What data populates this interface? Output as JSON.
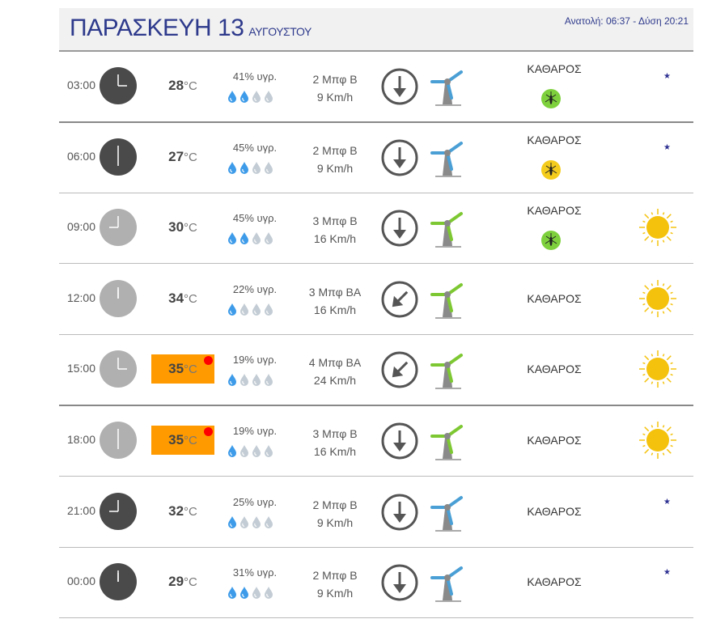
{
  "header": {
    "day": "ΠΑΡΑΣΚΕΥΗ 13",
    "month": "ΑΥΓΟΥΣΤΟΥ",
    "sun": "Ανατολή: 06:37  - Δύση 20:21"
  },
  "colors": {
    "night_clock": "#4a4a4a",
    "day_clock": "#b0b0b0",
    "hot": "#ff9a00",
    "turbine_blue": "#4a9fd5",
    "turbine_green": "#7dc832",
    "moon": "#2e3192",
    "sun": "#f4c20d"
  },
  "rows": [
    {
      "time": "03:00",
      "clock": "night",
      "temp": "28",
      "unit": "°C",
      "hot": false,
      "humidity": "41% υγρ.",
      "drops": 2,
      "beaufort": "2 Μπφ Β",
      "speed": "9 Km/h",
      "arrow": "down",
      "turbine": "blue",
      "condition": "ΚΑΘΑΡΟΣ",
      "mosquito": "green",
      "icon": "moon"
    },
    {
      "time": "06:00",
      "clock": "night",
      "temp": "27",
      "unit": "°C",
      "hot": false,
      "humidity": "45% υγρ.",
      "drops": 2,
      "beaufort": "2 Μπφ Β",
      "speed": "9 Km/h",
      "arrow": "down",
      "turbine": "blue",
      "condition": "ΚΑΘΑΡΟΣ",
      "mosquito": "yellow",
      "icon": "moon"
    },
    {
      "time": "09:00",
      "clock": "day",
      "temp": "30",
      "unit": "°C",
      "hot": false,
      "humidity": "45% υγρ.",
      "drops": 2,
      "beaufort": "3 Μπφ Β",
      "speed": "16 Km/h",
      "arrow": "down",
      "turbine": "green",
      "condition": "ΚΑΘΑΡΟΣ",
      "mosquito": "green",
      "icon": "sun"
    },
    {
      "time": "12:00",
      "clock": "day",
      "temp": "34",
      "unit": "°C",
      "hot": false,
      "humidity": "22% υγρ.",
      "drops": 1,
      "beaufort": "3 Μπφ ΒΑ",
      "speed": "16 Km/h",
      "arrow": "down-left",
      "turbine": "green",
      "condition": "ΚΑΘΑΡΟΣ",
      "mosquito": null,
      "icon": "sun"
    },
    {
      "time": "15:00",
      "clock": "day",
      "temp": "35",
      "unit": "°C",
      "hot": true,
      "humidity": "19% υγρ.",
      "drops": 1,
      "beaufort": "4 Μπφ ΒΑ",
      "speed": "24 Km/h",
      "arrow": "down-left",
      "turbine": "green",
      "condition": "ΚΑΘΑΡΟΣ",
      "mosquito": null,
      "icon": "sun"
    },
    {
      "time": "18:00",
      "clock": "day",
      "temp": "35",
      "unit": "°C",
      "hot": true,
      "humidity": "19% υγρ.",
      "drops": 1,
      "beaufort": "3 Μπφ Β",
      "speed": "16 Km/h",
      "arrow": "down",
      "turbine": "green",
      "condition": "ΚΑΘΑΡΟΣ",
      "mosquito": null,
      "icon": "sun"
    },
    {
      "time": "21:00",
      "clock": "night",
      "temp": "32",
      "unit": "°C",
      "hot": false,
      "humidity": "25% υγρ.",
      "drops": 1,
      "beaufort": "2 Μπφ Β",
      "speed": "9 Km/h",
      "arrow": "down",
      "turbine": "blue",
      "condition": "ΚΑΘΑΡΟΣ",
      "mosquito": null,
      "icon": "moon"
    },
    {
      "time": "00:00",
      "clock": "night",
      "temp": "29",
      "unit": "°C",
      "hot": false,
      "humidity": "31% υγρ.",
      "drops": 2,
      "beaufort": "2 Μπφ Β",
      "speed": "9 Km/h",
      "arrow": "down",
      "turbine": "blue",
      "condition": "ΚΑΘΑΡΟΣ",
      "mosquito": null,
      "icon": "moon"
    }
  ]
}
